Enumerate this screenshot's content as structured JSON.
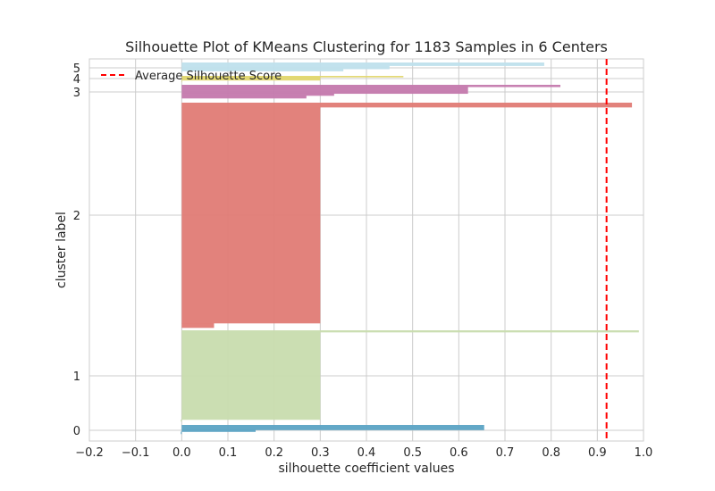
{
  "chart_data": {
    "type": "silhouette",
    "title": "Silhouette Plot of KMeans Clustering for 1183 Samples in 6 Centers",
    "xlabel": "silhouette coefficient values",
    "ylabel": "cluster label",
    "xlim": [
      -0.2,
      1.0
    ],
    "xticks": [
      -0.2,
      -0.1,
      0.0,
      0.1,
      0.2,
      0.3,
      0.4,
      0.5,
      0.6,
      0.7,
      0.8,
      0.9,
      1.0
    ],
    "xtick_labels": [
      "−0.2",
      "−0.1",
      "0.0",
      "0.1",
      "0.2",
      "0.3",
      "0.4",
      "0.5",
      "0.6",
      "0.7",
      "0.8",
      "0.9",
      "1.0"
    ],
    "ytick_labels": [
      "0",
      "1",
      "2",
      "3",
      "4",
      "5"
    ],
    "average_score": 0.92,
    "average_color": "#ff0000",
    "legend": {
      "label": "Average Silhouette Score",
      "position": "upper-left"
    },
    "grid": true,
    "clusters": [
      {
        "label": "0",
        "color": "#5ba3c4",
        "profile": [
          [
            0.655,
            0.55
          ],
          [
            0.16,
            0.2
          ],
          [
            -0.002,
            0.25
          ]
        ]
      },
      {
        "label": "1",
        "color": "#c8dcae",
        "profile": [
          [
            0.99,
            0.02
          ],
          [
            0.3,
            0.96
          ],
          [
            -0.002,
            0.02
          ]
        ]
      },
      {
        "label": "2",
        "color": "#e07b75",
        "profile": [
          [
            0.975,
            0.02
          ],
          [
            0.3,
            0.96
          ],
          [
            0.07,
            0.02
          ]
        ]
      },
      {
        "label": "3",
        "color": "#c479ad",
        "profile": [
          [
            0.82,
            0.15
          ],
          [
            0.62,
            0.5
          ],
          [
            0.33,
            0.15
          ],
          [
            0.27,
            0.2
          ]
        ]
      },
      {
        "label": "4",
        "color": "#e2d76e",
        "profile": [
          [
            0.48,
            0.2
          ],
          [
            0.3,
            0.5
          ],
          [
            0.0,
            0.3
          ]
        ]
      },
      {
        "label": "5",
        "color": "#bfe0ec",
        "profile": [
          [
            0.785,
            0.3
          ],
          [
            0.45,
            0.3
          ],
          [
            0.35,
            0.2
          ],
          [
            0.0,
            0.2
          ]
        ]
      }
    ]
  }
}
